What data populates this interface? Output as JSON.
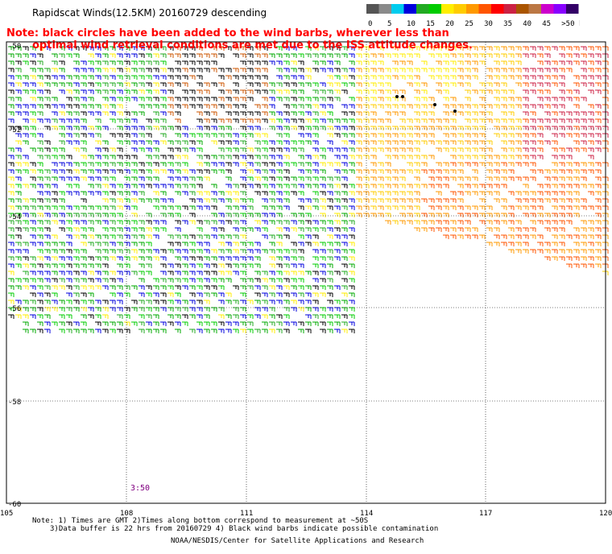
{
  "title": "Rapidscat Winds(12.5KM) 20160729 descending",
  "note_line1": "Note: black circles have been added to the wind barbs, wherever less than",
  "note_line2": "optimal wind retrieval conditions are met due to the ISS attitude changes.",
  "legend": {
    "colors": [
      "#555555",
      "#8a8a8a",
      "#00ccee",
      "#0000dd",
      "#22aa22",
      "#00cc00",
      "#ffee00",
      "#ffcc00",
      "#ff9900",
      "#ff5500",
      "#ff0000",
      "#cc2244",
      "#aa5500",
      "#bb7744",
      "#cc00cc",
      "#8800ff",
      "#330066"
    ],
    "labels": [
      "0",
      "5",
      "10",
      "15",
      "20",
      "25",
      "30",
      "35",
      "40",
      "45",
      ">50 knots"
    ]
  },
  "lat_labels": [
    "-50",
    "-52",
    "-54",
    "-56",
    "-58",
    "-60"
  ],
  "lon_labels": [
    "105",
    "108",
    "111",
    "114",
    "117",
    "120"
  ],
  "time_label": "3:50",
  "footer_line1": "Note: 1) Times are GMT 2)Times along bottom correspond to measurement at ~50S",
  "footer_line2": "3)Data buffer is 22 hrs from 20160729 4) Black wind barbs indicate possible contamination",
  "footer_line3": "NOAA/NESDIS/Center for Satellite Applications and Research"
}
